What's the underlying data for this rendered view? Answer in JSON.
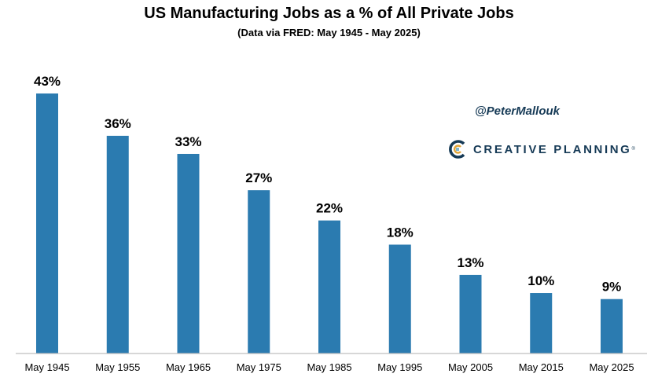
{
  "brand": {
    "handle": "@PeterMallouk",
    "logo_text": "CREATIVE PLANNING",
    "logo_colors": [
      "#163a56",
      "#e0a43a",
      "#7fb8cf"
    ]
  },
  "chart_data": {
    "type": "bar",
    "title": "US Manufacturing Jobs as a % of All Private Jobs",
    "subtitle": "(Data via FRED: May 1945 - May 2025)",
    "categories": [
      "May 1945",
      "May 1955",
      "May 1965",
      "May 1975",
      "May 1985",
      "May 1995",
      "May 2005",
      "May 2015",
      "May 2025"
    ],
    "values": [
      43,
      36,
      33,
      27,
      22,
      18,
      13,
      10,
      9
    ],
    "value_labels": [
      "43%",
      "36%",
      "33%",
      "27%",
      "22%",
      "18%",
      "13%",
      "10%",
      "9%"
    ],
    "ylim": [
      0,
      43
    ],
    "bar_color": "#2b7bb0",
    "grid": false,
    "legend": "none"
  }
}
